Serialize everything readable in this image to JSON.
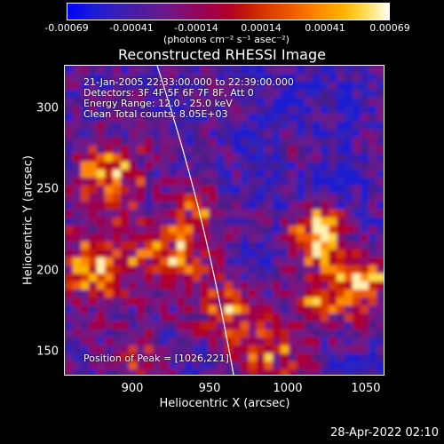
{
  "colorbar": {
    "ticks": [
      "-0.00069",
      "-0.00041",
      "-0.00014",
      "0.00014",
      "0.00041",
      "0.00069"
    ],
    "units": "(photons cm⁻² s⁻¹ asec⁻²)"
  },
  "title": "Reconstructed RHESSI Image",
  "info": {
    "line1": "21-Jan-2005 22:33:00.000 to 22:39:00.000",
    "line2": "Detectors: 3F 4F 5F 6F 7F 8F, Att 0",
    "line3": "Energy Range: 12.0 - 25.0 keV",
    "line4": "Clean    Total counts: 8.05E+03",
    "peak": "Position of Peak = [1026,221]"
  },
  "axes": {
    "xlabel": "Heliocentric X (arcsec)",
    "ylabel": "Heliocentric Y (arcsec)",
    "xticks": [
      "900",
      "950",
      "1000",
      "1050"
    ],
    "yticks": [
      "300",
      "250",
      "200",
      "150"
    ]
  },
  "timestamp": "28-Apr-2022 02:10",
  "colors": {
    "background": "#000000",
    "limb_line": "#ffffff"
  }
}
